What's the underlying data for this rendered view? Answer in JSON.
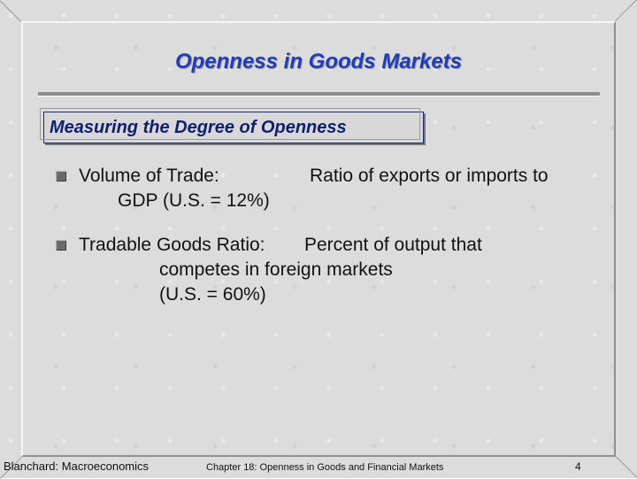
{
  "slide": {
    "title": "Openness in Goods Markets",
    "subtitle": "Measuring the Degree of Openness",
    "bullets": [
      {
        "term": "Volume of Trade:",
        "definition": "Ratio of exports or imports to",
        "continuation": [
          "GDP (U.S. = 12%)"
        ]
      },
      {
        "term": "Tradable Goods Ratio:",
        "definition": "Percent of output that",
        "continuation": [
          "competes in foreign markets",
          "(U.S. = 60%)"
        ]
      }
    ]
  },
  "footer": {
    "left": "Blanchard: Macroeconomics",
    "center": "Chapter 18: Openness in Goods and Financial Markets",
    "page": "4"
  },
  "colors": {
    "title": "#1f3bbf",
    "subtitle": "#0d1e70",
    "background": "#dcdcdc"
  }
}
